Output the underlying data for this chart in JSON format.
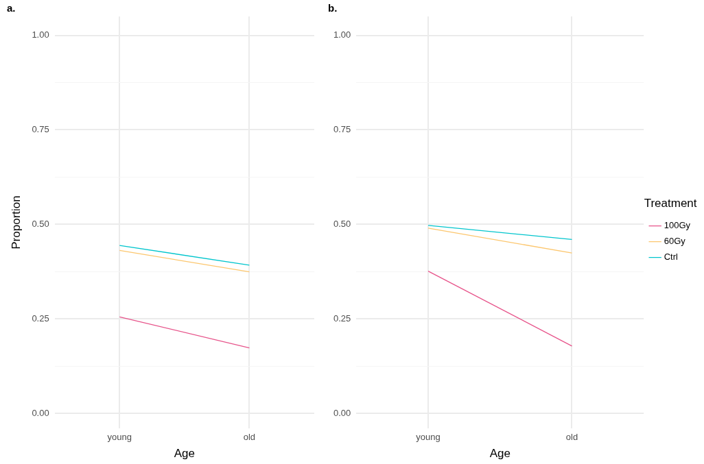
{
  "chart_data": [
    {
      "type": "line",
      "title": "a.",
      "xlabel": "Age",
      "ylabel": "Proportion",
      "categories": [
        "young",
        "old"
      ],
      "series": [
        {
          "color": "#e7538a",
          "values": [
            0.255,
            0.173
          ]
        },
        {
          "color": "#fcc66d",
          "values": [
            0.431,
            0.374
          ]
        },
        {
          "color": "#00c5cd",
          "values": [
            0.444,
            0.392
          ]
        }
      ],
      "ylim": [
        -0.04,
        1.05
      ],
      "yticks": [
        {
          "value": 0,
          "label": "0.00"
        },
        {
          "value": 0.125,
          "label": null
        },
        {
          "value": 0.25,
          "label": "0.25"
        },
        {
          "value": 0.375,
          "label": null
        },
        {
          "value": 0.5,
          "label": "0.50"
        },
        {
          "value": 0.625,
          "label": null
        },
        {
          "value": 0.75,
          "label": "0.75"
        },
        {
          "value": 0.875,
          "label": null
        },
        {
          "value": 1,
          "label": "1.00"
        }
      ],
      "grid": true,
      "legend": false,
      "marker": "none"
    },
    {
      "type": "line",
      "title": "b.",
      "xlabel": "Age",
      "legend_title": "Treatment",
      "categories": [
        "young",
        "old"
      ],
      "series": [
        {
          "name": "100Gy",
          "color": "#e7538a",
          "values": [
            0.376,
            0.178
          ]
        },
        {
          "name": "60Gy",
          "color": "#fcc66d",
          "values": [
            0.49,
            0.424
          ]
        },
        {
          "name": "Ctrl",
          "color": "#00c5cd",
          "values": [
            0.497,
            0.46
          ]
        }
      ],
      "ylim": [
        -0.04,
        1.05
      ],
      "yticks": [
        {
          "value": 0,
          "label": "0.00"
        },
        {
          "value": 0.125,
          "label": null
        },
        {
          "value": 0.25,
          "label": "0.25"
        },
        {
          "value": 0.375,
          "label": null
        },
        {
          "value": 0.5,
          "label": "0.50"
        },
        {
          "value": 0.625,
          "label": null
        },
        {
          "value": 0.75,
          "label": "0.75"
        },
        {
          "value": 0.875,
          "label": null
        },
        {
          "value": 1,
          "label": "1.00"
        }
      ],
      "grid": true,
      "legend": "right",
      "marker": "none"
    }
  ]
}
